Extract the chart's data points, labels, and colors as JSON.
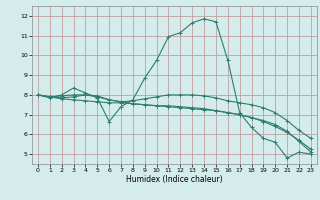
{
  "title": "",
  "xlabel": "Humidex (Indice chaleur)",
  "xlim": [
    -0.5,
    23.5
  ],
  "ylim": [
    4.5,
    12.5
  ],
  "xticks": [
    0,
    1,
    2,
    3,
    4,
    5,
    6,
    7,
    8,
    9,
    10,
    11,
    12,
    13,
    14,
    15,
    16,
    17,
    18,
    19,
    20,
    21,
    22,
    23
  ],
  "yticks": [
    5,
    6,
    7,
    8,
    9,
    10,
    11,
    12
  ],
  "bg_color": "#d4ecec",
  "line_color": "#2e7d6e",
  "grid_color": "#c0a0a0",
  "lines": [
    {
      "x": [
        0,
        1,
        2,
        3,
        4,
        5,
        6,
        7,
        8,
        9,
        10,
        11,
        12,
        13,
        14,
        15,
        16,
        17,
        18,
        19,
        20,
        21,
        22,
        23
      ],
      "y": [
        8.0,
        7.85,
        8.0,
        8.35,
        8.1,
        7.85,
        6.65,
        7.4,
        7.75,
        8.85,
        9.75,
        10.95,
        11.15,
        11.65,
        11.85,
        11.7,
        9.75,
        7.1,
        6.35,
        5.8,
        5.6,
        4.8,
        5.1,
        5.0
      ]
    },
    {
      "x": [
        0,
        1,
        2,
        3,
        4,
        5,
        6,
        7,
        8,
        9,
        10,
        11,
        12,
        13,
        14,
        15,
        16,
        17,
        18,
        19,
        20,
        21,
        22,
        23
      ],
      "y": [
        8.0,
        7.9,
        7.95,
        8.0,
        8.0,
        7.9,
        7.75,
        7.65,
        7.7,
        7.8,
        7.9,
        8.0,
        8.0,
        8.0,
        7.95,
        7.85,
        7.7,
        7.6,
        7.5,
        7.35,
        7.1,
        6.7,
        6.2,
        5.8
      ]
    },
    {
      "x": [
        0,
        1,
        2,
        3,
        4,
        5,
        6,
        7,
        8,
        9,
        10,
        11,
        12,
        13,
        14,
        15,
        16,
        17,
        18,
        19,
        20,
        21,
        22,
        23
      ],
      "y": [
        8.0,
        7.9,
        7.85,
        7.9,
        8.0,
        7.95,
        7.75,
        7.65,
        7.55,
        7.5,
        7.45,
        7.45,
        7.4,
        7.35,
        7.3,
        7.2,
        7.1,
        7.0,
        6.85,
        6.65,
        6.4,
        6.1,
        5.7,
        5.25
      ]
    },
    {
      "x": [
        0,
        1,
        2,
        3,
        4,
        5,
        6,
        7,
        8,
        9,
        10,
        11,
        12,
        13,
        14,
        15,
        16,
        17,
        18,
        19,
        20,
        21,
        22,
        23
      ],
      "y": [
        8.0,
        7.9,
        7.8,
        7.75,
        7.7,
        7.65,
        7.6,
        7.6,
        7.55,
        7.5,
        7.45,
        7.4,
        7.35,
        7.3,
        7.25,
        7.2,
        7.1,
        7.0,
        6.85,
        6.7,
        6.5,
        6.15,
        5.65,
        5.1
      ]
    }
  ]
}
